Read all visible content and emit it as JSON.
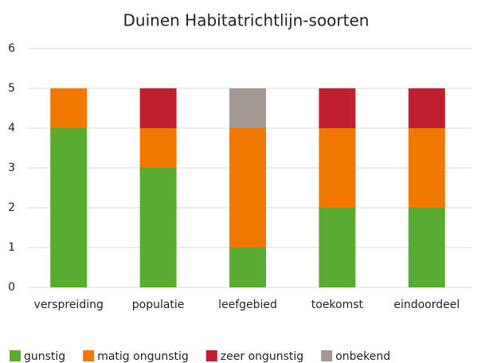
{
  "chart_data": {
    "type": "stacked_bar",
    "title": "Duinen Habitatrichtlijn-soorten",
    "categories": [
      "verspreiding",
      "populatie",
      "leefgebied",
      "toekomst",
      "eindoordeel"
    ],
    "series": [
      {
        "name": "gunstig",
        "color": "#5aab32",
        "values": [
          4,
          3,
          1,
          2,
          2
        ]
      },
      {
        "name": "matig ongunstig",
        "color": "#f07800",
        "values": [
          1,
          1,
          3,
          2,
          2
        ]
      },
      {
        "name": "zeer ongunstig",
        "color": "#bf1f2e",
        "values": [
          0,
          1,
          0,
          1,
          1
        ]
      },
      {
        "name": "onbekend",
        "color": "#a29a92",
        "values": [
          0,
          0,
          1,
          0,
          0
        ]
      }
    ],
    "ylim": [
      0,
      6
    ],
    "yticks": [
      0,
      1,
      2,
      3,
      4,
      5,
      6
    ],
    "grid": true,
    "legend": "bottom"
  }
}
